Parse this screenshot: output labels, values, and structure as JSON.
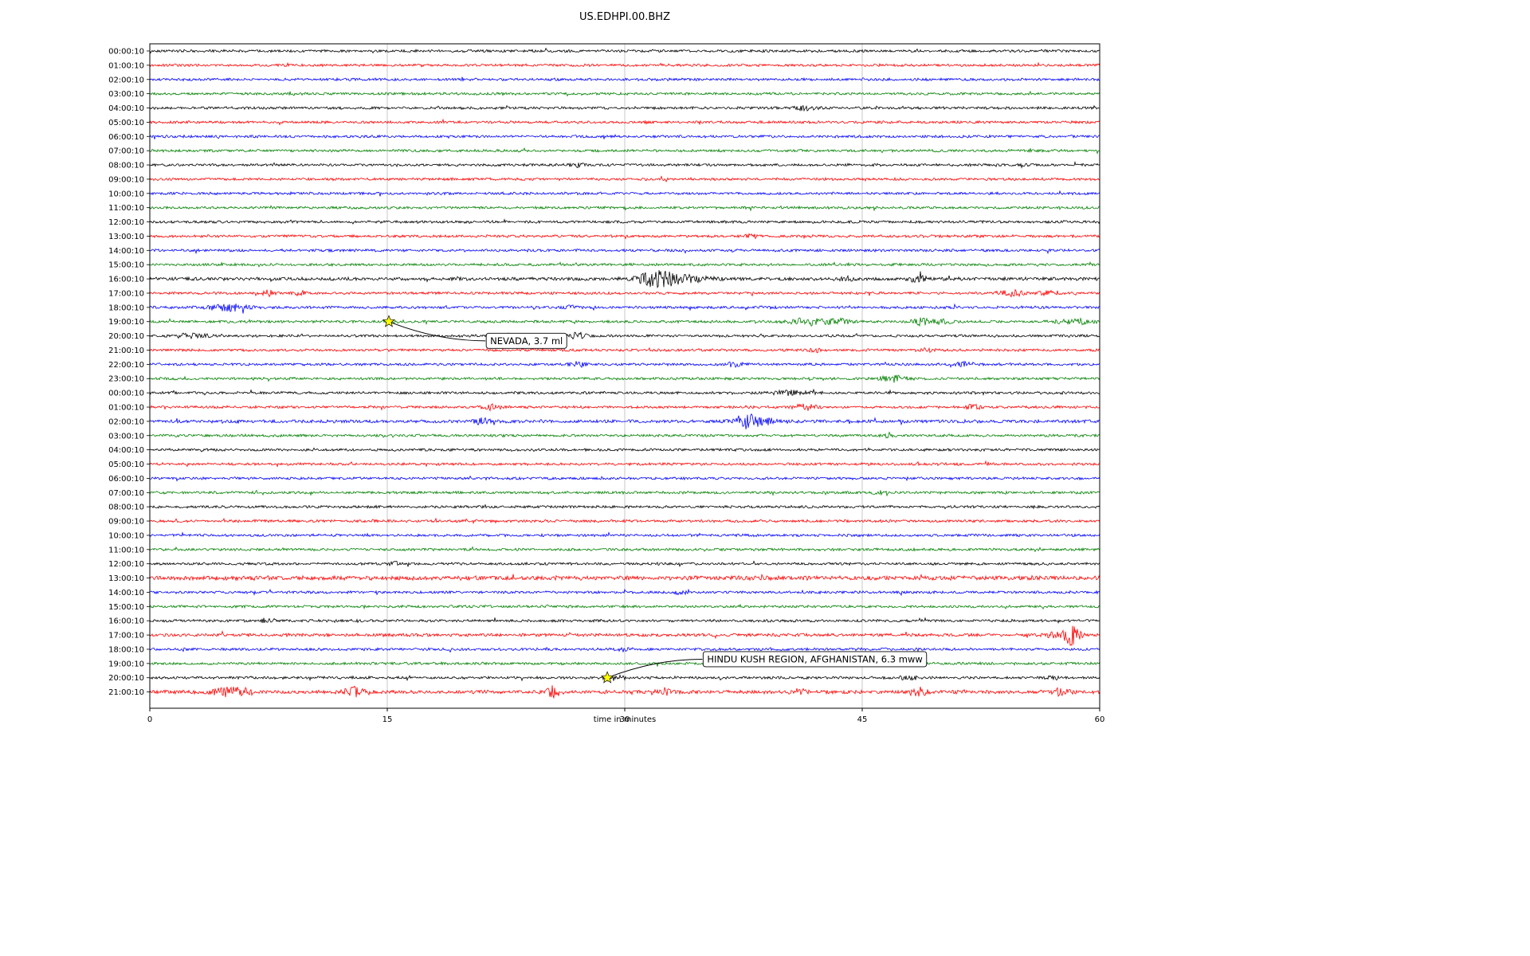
{
  "chart_data": {
    "type": "line",
    "title": "US.EDHPI.00.BHZ",
    "xlabel": "time in minutes",
    "ylabel": "",
    "x_range": [
      0,
      60
    ],
    "x_ticks": [
      0,
      15,
      30,
      45,
      60
    ],
    "grid_vertical_minutes": [
      15,
      30,
      45
    ],
    "trace_colors_cycle": [
      "#000000",
      "#ff0000",
      "#0000ff",
      "#008000"
    ],
    "marker_color": "#ffff00",
    "base_amplitude": 1.5,
    "row_labels": [
      "00:00:10",
      "01:00:10",
      "02:00:10",
      "03:00:10",
      "04:00:10",
      "05:00:10",
      "06:00:10",
      "07:00:10",
      "08:00:10",
      "09:00:10",
      "10:00:10",
      "11:00:10",
      "12:00:10",
      "13:00:10",
      "14:00:10",
      "15:00:10",
      "16:00:10",
      "17:00:10",
      "18:00:10",
      "19:00:10",
      "20:00:10",
      "21:00:10",
      "22:00:10",
      "23:00:10",
      "00:00:10",
      "01:00:10",
      "02:00:10",
      "03:00:10",
      "04:00:10",
      "05:00:10",
      "06:00:10",
      "07:00:10",
      "08:00:10",
      "09:00:10",
      "10:00:10",
      "11:00:10",
      "12:00:10",
      "13:00:10",
      "14:00:10",
      "15:00:10",
      "16:00:10",
      "17:00:10",
      "18:00:10",
      "19:00:10",
      "20:00:10",
      "21:00:10"
    ],
    "row_amp_overrides": {
      "16": 1.9,
      "26": 1.8,
      "37": 2.5,
      "41": 1.8,
      "45": 2.1
    },
    "events": [
      {
        "row": 19,
        "minute": 15.1,
        "label": "NEVADA, 3.7 ml",
        "label_minute": 21.2,
        "label_row_offset": 1.35
      },
      {
        "row": 44,
        "minute": 28.9,
        "label": "HINDU KUSH REGION, AFGHANISTAN, 6.3 mww",
        "label_minute": 34.9,
        "label_row_offset": -1.3
      }
    ],
    "bursts": [
      {
        "row": 4,
        "minute": 41.5,
        "amp": 2.5,
        "sigma": 0.5
      },
      {
        "row": 8,
        "minute": 27.0,
        "amp": 2.0,
        "sigma": 0.3
      },
      {
        "row": 13,
        "minute": 38.0,
        "amp": 2.0,
        "sigma": 0.3
      },
      {
        "row": 16,
        "minute": 32.0,
        "amp": 9.5,
        "sigma": 0.7
      },
      {
        "row": 16,
        "minute": 33.5,
        "amp": 4.0,
        "sigma": 1.2
      },
      {
        "row": 16,
        "minute": 44.0,
        "amp": 2.0,
        "sigma": 0.3
      },
      {
        "row": 16,
        "minute": 48.5,
        "amp": 3.0,
        "sigma": 0.4
      },
      {
        "row": 17,
        "minute": 7.5,
        "amp": 3.0,
        "sigma": 0.3
      },
      {
        "row": 17,
        "minute": 9.5,
        "amp": 2.5,
        "sigma": 0.3
      },
      {
        "row": 17,
        "minute": 54.5,
        "amp": 3.5,
        "sigma": 0.6
      },
      {
        "row": 17,
        "minute": 56.5,
        "amp": 3.0,
        "sigma": 0.4
      },
      {
        "row": 18,
        "minute": 5.0,
        "amp": 4.0,
        "sigma": 0.9
      },
      {
        "row": 18,
        "minute": 26.5,
        "amp": 2.0,
        "sigma": 0.3
      },
      {
        "row": 19,
        "minute": 15.3,
        "amp": 1.5,
        "sigma": 0.3
      },
      {
        "row": 19,
        "minute": 41.5,
        "amp": 4.0,
        "sigma": 0.8
      },
      {
        "row": 19,
        "minute": 43.5,
        "amp": 3.0,
        "sigma": 0.5
      },
      {
        "row": 19,
        "minute": 48.8,
        "amp": 4.5,
        "sigma": 0.4
      },
      {
        "row": 19,
        "minute": 50.0,
        "amp": 2.5,
        "sigma": 0.4
      },
      {
        "row": 19,
        "minute": 58.5,
        "amp": 3.5,
        "sigma": 0.8
      },
      {
        "row": 20,
        "minute": 2.5,
        "amp": 2.5,
        "sigma": 0.8
      },
      {
        "row": 20,
        "minute": 22.5,
        "amp": 2.0,
        "sigma": 0.3
      },
      {
        "row": 20,
        "minute": 27.0,
        "amp": 4.0,
        "sigma": 0.4
      },
      {
        "row": 21,
        "minute": 42.0,
        "amp": 2.0,
        "sigma": 0.3
      },
      {
        "row": 21,
        "minute": 49.0,
        "amp": 2.2,
        "sigma": 0.3
      },
      {
        "row": 22,
        "minute": 27.0,
        "amp": 3.5,
        "sigma": 0.3
      },
      {
        "row": 22,
        "minute": 37.0,
        "amp": 2.5,
        "sigma": 0.4
      },
      {
        "row": 22,
        "minute": 51.5,
        "amp": 2.5,
        "sigma": 0.4
      },
      {
        "row": 23,
        "minute": 47.0,
        "amp": 4.0,
        "sigma": 0.5
      },
      {
        "row": 24,
        "minute": 40.5,
        "amp": 2.5,
        "sigma": 0.8
      },
      {
        "row": 25,
        "minute": 21.5,
        "amp": 3.0,
        "sigma": 0.4
      },
      {
        "row": 25,
        "minute": 41.5,
        "amp": 3.5,
        "sigma": 0.5
      },
      {
        "row": 25,
        "minute": 52.0,
        "amp": 3.0,
        "sigma": 0.4
      },
      {
        "row": 26,
        "minute": 21.0,
        "amp": 3.0,
        "sigma": 0.4
      },
      {
        "row": 26,
        "minute": 37.5,
        "amp": 6.5,
        "sigma": 0.5
      },
      {
        "row": 26,
        "minute": 38.5,
        "amp": 4.0,
        "sigma": 0.8
      },
      {
        "row": 27,
        "minute": 46.5,
        "amp": 2.0,
        "sigma": 0.3
      },
      {
        "row": 31,
        "minute": 46.0,
        "amp": 2.0,
        "sigma": 0.3
      },
      {
        "row": 36,
        "minute": 15.5,
        "amp": 2.0,
        "sigma": 0.3
      },
      {
        "row": 38,
        "minute": 33.5,
        "amp": 2.0,
        "sigma": 0.3
      },
      {
        "row": 40,
        "minute": 7.3,
        "amp": 2.5,
        "sigma": 0.2
      },
      {
        "row": 41,
        "minute": 57.0,
        "amp": 3.0,
        "sigma": 0.3
      },
      {
        "row": 41,
        "minute": 58.2,
        "amp": 12.0,
        "sigma": 0.35
      },
      {
        "row": 42,
        "minute": 30.0,
        "amp": 2.0,
        "sigma": 0.3
      },
      {
        "row": 44,
        "minute": 29.3,
        "amp": 2.5,
        "sigma": 0.6
      },
      {
        "row": 44,
        "minute": 48.0,
        "amp": 2.5,
        "sigma": 0.4
      },
      {
        "row": 44,
        "minute": 57.0,
        "amp": 2.0,
        "sigma": 0.3
      },
      {
        "row": 45,
        "minute": 4.8,
        "amp": 5.0,
        "sigma": 0.6
      },
      {
        "row": 45,
        "minute": 6.0,
        "amp": 4.0,
        "sigma": 0.4
      },
      {
        "row": 45,
        "minute": 13.0,
        "amp": 5.0,
        "sigma": 0.5
      },
      {
        "row": 45,
        "minute": 25.5,
        "amp": 6.5,
        "sigma": 0.3
      },
      {
        "row": 45,
        "minute": 32.5,
        "amp": 4.0,
        "sigma": 0.3
      },
      {
        "row": 45,
        "minute": 41.0,
        "amp": 3.0,
        "sigma": 0.3
      },
      {
        "row": 45,
        "minute": 48.5,
        "amp": 5.0,
        "sigma": 0.4
      },
      {
        "row": 45,
        "minute": 57.5,
        "amp": 4.0,
        "sigma": 0.4
      }
    ]
  }
}
